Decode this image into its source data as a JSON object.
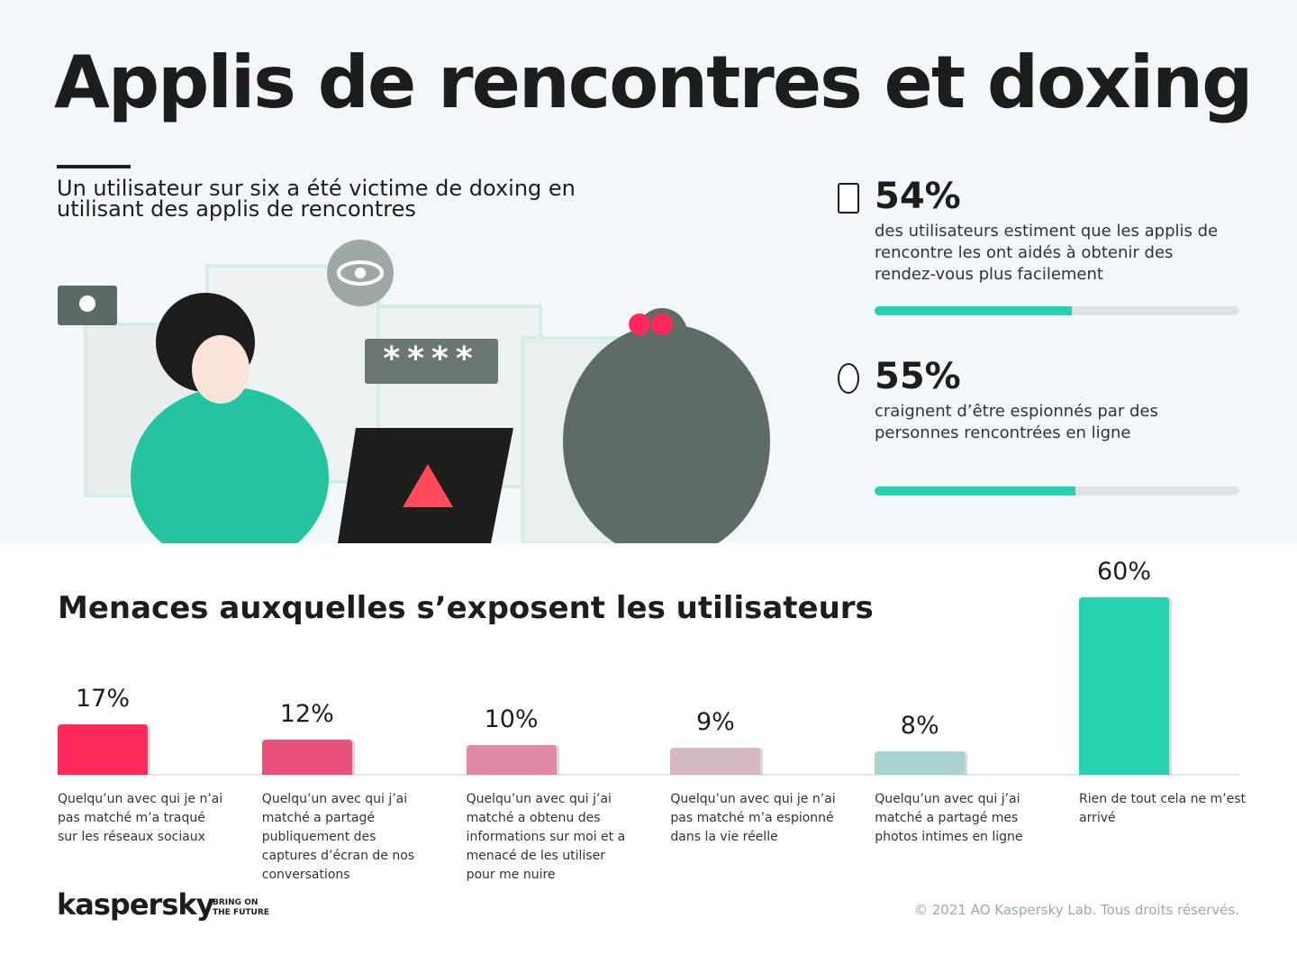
{
  "title": "Applis de rencontres et doxing",
  "subtitle": "Un utilisateur sur six a été victime de doxing en utilisant des applis de rencontres",
  "stats": [
    {
      "value": 54,
      "value_label": "54%",
      "text": "des utilisateurs estiment que les applis de rencontre les ont aidés à obtenir des rendez-vous plus facilement",
      "color": "#25d1b0"
    },
    {
      "value": 55,
      "value_label": "55%",
      "text": "craignent d’être espionnés par des personnes rencontrées en ligne",
      "color": "#25d1b0"
    }
  ],
  "illustration": {
    "password": "****"
  },
  "chart_data": {
    "type": "bar",
    "title": "Menaces auxquelles s’exposent les utilisateurs",
    "categories": [
      "Quelqu’un avec qui je n’ai pas matché m’a traqué sur les réseaux sociaux",
      "Quelqu’un avec qui j’ai matché a partagé publiquement des captures d’écran de nos conversations",
      "Quelqu’un avec qui j’ai matché a obtenu des informations sur moi et a menacé de les utiliser pour me nuire",
      "Quelqu’un avec qui je n’ai pas matché m’a espionné dans la vie réelle",
      "Quelqu’un avec qui j’ai matché a partagé mes photos intimes en ligne",
      "Rien de tout cela ne m’est arrivé"
    ],
    "values": [
      17,
      12,
      10,
      9,
      8,
      60
    ],
    "value_labels": [
      "17%",
      "12%",
      "10%",
      "9%",
      "8%",
      "60%"
    ],
    "colors": [
      "#ff2a5c",
      "#e8527a",
      "#e08aa6",
      "#d4b8c4",
      "#a9d3cf",
      "#25d1b0"
    ]
  },
  "footer": {
    "brand": "kaspersky",
    "tagline": [
      "BRING ON",
      "THE FUTURE"
    ],
    "copyright": "© 2021 AO Kaspersky Lab. Tous droits réservés."
  }
}
